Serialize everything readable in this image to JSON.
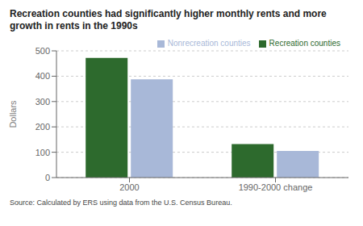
{
  "chart_data": {
    "type": "bar",
    "title": "Recreation counties had significantly higher monthly rents and more\ngrowth in rents in the 1990s",
    "ylabel": "Dollars",
    "categories": [
      "2000",
      "1990-2000 change"
    ],
    "series": [
      {
        "name": "Recreation counties",
        "color": "#2d6a2d",
        "values": [
          472,
          132
        ]
      },
      {
        "name": "Nonrecreation counties",
        "color": "#a8b8d8",
        "values": [
          388,
          105
        ]
      }
    ],
    "ylim": [
      0,
      500
    ],
    "yticks": [
      0,
      100,
      200,
      300,
      400,
      500
    ],
    "grid": true,
    "legend": "upper right",
    "annotations": [
      "Source: Calculated by ERS using data from the U.S. Census Bureau."
    ]
  }
}
